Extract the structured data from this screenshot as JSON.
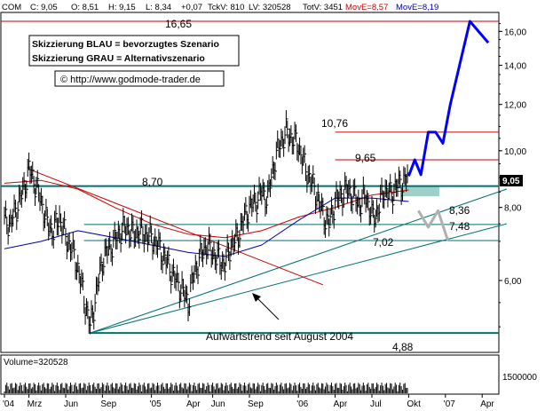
{
  "header": {
    "symbol": "COM",
    "c_label": "C: 9,05",
    "o_label": "O: 8,51",
    "h_label": "H: 9,15",
    "l_label": "L: 8,34",
    "chg_label": "+0,07",
    "tickv_label": "TckV: 810",
    "lv_label": "LV: 320528",
    "totv_label": "TotV: 3451",
    "move1_label": "MovE=8,57",
    "move2_label": "MovE=8,19"
  },
  "info_box": {
    "line1": "Skizzierung BLAU = bevorzugtes Szenario",
    "line2": "Skizzierung GRAU = Alternativszenario",
    "copyright": "© http://www.godmode-trader.de"
  },
  "volume_label": "Volume=320528",
  "volume_tick": "1500000",
  "annotation": "Aufwärtstrend seit August 2004",
  "level_labels": [
    "16,65",
    "10,76",
    "9,65",
    "8,70",
    "8,36",
    "7,48",
    "7,02",
    "4,88"
  ],
  "current_price": "9,05",
  "colors": {
    "price": "#000000",
    "ma_fast": "#cc0000",
    "ma_slow": "#0000aa",
    "resistance": "#cc0000",
    "support": "#007070",
    "scenario_blue": "#0000ff",
    "scenario_gray": "#b0b0b0",
    "zone": "#9fd0c8"
  },
  "chart_data": {
    "type": "line",
    "scale": "log",
    "ylim": [
      4.6,
      17
    ],
    "y_ticks": [
      "6,00",
      "8,00",
      "10,00",
      "12,00",
      "14,00",
      "16,00"
    ],
    "y_tick_values": [
      6,
      8,
      10,
      12,
      14,
      16
    ],
    "x_ticks": [
      "'04",
      "Mrz",
      "Jun",
      "Sep",
      "'05",
      "Apr",
      "Jun",
      "Sep",
      "'06",
      "Apr",
      "Jul",
      "Okt",
      "'07",
      "Apr"
    ],
    "x_tick_months": [
      0,
      2,
      5,
      8,
      12,
      15,
      17,
      20,
      24,
      27,
      30,
      33,
      36,
      39
    ],
    "price": {
      "months": [
        0,
        0.5,
        1,
        1.5,
        2,
        2.5,
        3,
        3.5,
        4,
        4.5,
        5,
        5.5,
        6,
        6.5,
        7,
        7.5,
        8,
        8.5,
        9,
        9.5,
        10,
        10.5,
        11,
        11.5,
        12,
        12.5,
        13,
        13.5,
        14,
        14.5,
        15,
        15.5,
        16,
        16.5,
        17,
        17.5,
        18,
        18.5,
        19,
        19.5,
        20,
        20.5,
        21,
        21.5,
        22,
        22.5,
        23,
        23.5,
        24,
        24.5,
        25,
        25.5,
        26,
        26.5,
        27,
        27.5,
        28,
        28.5,
        29,
        29.5,
        30,
        30.5,
        31,
        31.5,
        32,
        32.5,
        33
      ],
      "values": [
        7.6,
        7.5,
        8.0,
        8.5,
        9.3,
        8.8,
        8.2,
        7.5,
        7.3,
        7.7,
        7.1,
        6.8,
        6.3,
        5.6,
        5.0,
        5.7,
        6.5,
        6.8,
        7.0,
        7.3,
        7.4,
        7.2,
        7.3,
        7.2,
        7.1,
        6.9,
        6.6,
        6.3,
        6.0,
        5.8,
        5.5,
        6.2,
        6.6,
        6.9,
        6.7,
        6.5,
        6.4,
        6.9,
        7.1,
        7.6,
        8.0,
        8.2,
        8.5,
        8.3,
        9.5,
        10.3,
        10.76,
        10.5,
        10.2,
        9.4,
        8.9,
        8.4,
        7.8,
        7.5,
        8.2,
        8.4,
        8.6,
        8.36,
        8.1,
        8.4,
        7.7,
        7.9,
        8.6,
        8.4,
        8.7,
        8.8,
        9.05
      ]
    },
    "ma_fast": {
      "name": "MovE=8,57",
      "months": [
        0,
        3,
        6,
        9,
        12,
        15,
        18,
        21,
        24,
        27,
        30,
        33
      ],
      "values": [
        8.8,
        8.9,
        8.6,
        8.0,
        7.5,
        7.2,
        7.1,
        7.3,
        7.7,
        8.0,
        8.4,
        8.57
      ]
    },
    "ma_slow": {
      "name": "MovE=8,19",
      "months": [
        0,
        3,
        6,
        9,
        12,
        15,
        18,
        21,
        24,
        27,
        30,
        33
      ],
      "values": [
        6.8,
        7.0,
        7.3,
        7.1,
        6.9,
        6.7,
        6.6,
        6.9,
        7.6,
        8.3,
        8.3,
        8.19
      ]
    },
    "horizontal_levels": [
      {
        "label": "16,65",
        "value": 16.65,
        "kind": "resistance"
      },
      {
        "label": "10,76",
        "value": 10.76,
        "kind": "resistance"
      },
      {
        "label": "9,65",
        "value": 9.65,
        "kind": "resistance"
      },
      {
        "label": "8,70",
        "value": 8.7,
        "kind": "support"
      },
      {
        "label": "7,48",
        "value": 7.48,
        "kind": "support"
      },
      {
        "label": "7,02",
        "value": 7.02,
        "kind": "support"
      },
      {
        "label": "4,88",
        "value": 4.88,
        "kind": "support"
      }
    ],
    "trendlines": [
      {
        "kind": "uptrend",
        "from": [
          7,
          4.88
        ],
        "to": [
          41,
          8.6
        ]
      },
      {
        "kind": "uptrend",
        "from": [
          7,
          4.88
        ],
        "to": [
          41,
          7.5
        ]
      },
      {
        "kind": "downtrend",
        "from": [
          2,
          9.3
        ],
        "to": [
          26,
          5.9
        ]
      }
    ],
    "scenario_blue": {
      "months": [
        33.0,
        33.5,
        34.0,
        34.6,
        35.2,
        35.8,
        36.4,
        38.0,
        39.5
      ],
      "values": [
        9.05,
        9.65,
        9.1,
        10.76,
        10.76,
        10.3,
        12.0,
        16.65,
        15.3
      ]
    },
    "scenario_gray": {
      "months": [
        33.8,
        34.6,
        35.4,
        36.2
      ],
      "values": [
        7.9,
        7.4,
        7.9,
        7.02
      ]
    }
  }
}
